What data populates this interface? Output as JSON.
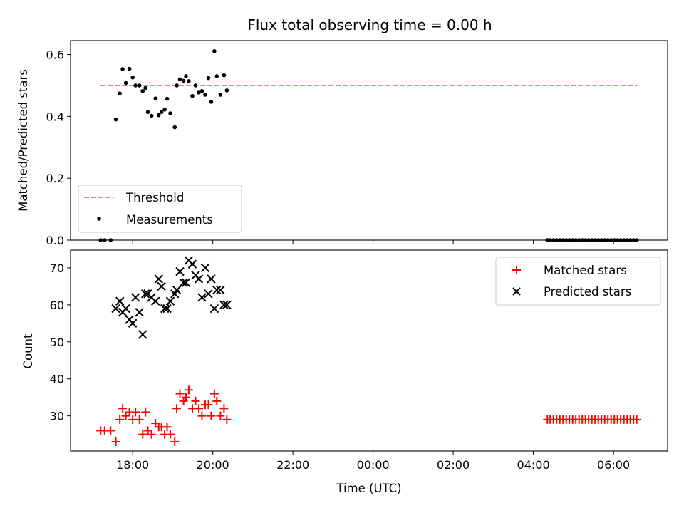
{
  "chart_data": {
    "title": "Flux total observing time = 0.00 h",
    "xlabel": "Time (UTC)",
    "x_ticks": [
      "18:00",
      "20:00",
      "22:00",
      "00:00",
      "02:00",
      "04:00",
      "06:00"
    ],
    "x_tick_hours": [
      18,
      20,
      22,
      24,
      26,
      28,
      30
    ],
    "xlim": [
      16.45,
      31.35
    ],
    "panels": [
      {
        "type": "scatter",
        "ylabel": "Matched/Predicted stars",
        "ylim": [
          0,
          0.645
        ],
        "y_ticks": [
          "0.0",
          "0.2",
          "0.4",
          "0.6"
        ],
        "y_tick_values": [
          0,
          0.2,
          0.4,
          0.6
        ],
        "legend": {
          "placement": "lower-left",
          "entries": [
            "Threshold",
            "Measurements"
          ]
        },
        "threshold": {
          "name": "Threshold",
          "y": 0.5,
          "x": [
            17.2,
            30.6
          ],
          "color": "#ff7f7f",
          "style": "dashed"
        },
        "series": [
          {
            "name": "Measurements",
            "marker": "dot",
            "color": "#000000",
            "points": [
              [
                17.2,
                0
              ],
              [
                17.3,
                0
              ],
              [
                17.45,
                0
              ],
              [
                17.58,
                0.39
              ],
              [
                17.68,
                0.474
              ],
              [
                17.75,
                0.553
              ],
              [
                17.83,
                0.508
              ],
              [
                17.92,
                0.554
              ],
              [
                18.0,
                0.526
              ],
              [
                18.07,
                0.5
              ],
              [
                18.17,
                0.5
              ],
              [
                18.25,
                0.482
              ],
              [
                18.32,
                0.492
              ],
              [
                18.38,
                0.414
              ],
              [
                18.47,
                0.402
              ],
              [
                18.57,
                0.458
              ],
              [
                18.65,
                0.404
              ],
              [
                18.72,
                0.414
              ],
              [
                18.8,
                0.422
              ],
              [
                18.86,
                0.457
              ],
              [
                18.94,
                0.41
              ],
              [
                19.05,
                0.365
              ],
              [
                19.1,
                0.5
              ],
              [
                19.18,
                0.52
              ],
              [
                19.27,
                0.515
              ],
              [
                19.33,
                0.53
              ],
              [
                19.4,
                0.514
              ],
              [
                19.49,
                0.466
              ],
              [
                19.57,
                0.5
              ],
              [
                19.65,
                0.477
              ],
              [
                19.73,
                0.482
              ],
              [
                19.81,
                0.47
              ],
              [
                19.89,
                0.524
              ],
              [
                19.96,
                0.447
              ],
              [
                20.04,
                0.611
              ],
              [
                20.1,
                0.53
              ],
              [
                20.19,
                0.47
              ],
              [
                20.28,
                0.533
              ],
              [
                20.35,
                0.484
              ],
              [
                28.35,
                0
              ],
              [
                28.42,
                0
              ],
              [
                28.5,
                0
              ],
              [
                28.58,
                0
              ],
              [
                28.66,
                0
              ],
              [
                28.74,
                0
              ],
              [
                28.82,
                0
              ],
              [
                28.9,
                0
              ],
              [
                28.98,
                0
              ],
              [
                29.06,
                0
              ],
              [
                29.14,
                0
              ],
              [
                29.22,
                0
              ],
              [
                29.3,
                0
              ],
              [
                29.38,
                0
              ],
              [
                29.46,
                0
              ],
              [
                29.54,
                0
              ],
              [
                29.62,
                0
              ],
              [
                29.7,
                0
              ],
              [
                29.78,
                0
              ],
              [
                29.86,
                0
              ],
              [
                29.94,
                0
              ],
              [
                30.02,
                0
              ],
              [
                30.1,
                0
              ],
              [
                30.18,
                0
              ],
              [
                30.26,
                0
              ],
              [
                30.34,
                0
              ],
              [
                30.42,
                0
              ],
              [
                30.5,
                0
              ],
              [
                30.58,
                0
              ]
            ]
          }
        ]
      },
      {
        "type": "scatter",
        "ylabel": "Count",
        "ylim": [
          20.5,
          74.8
        ],
        "y_ticks": [
          "30",
          "40",
          "50",
          "60",
          "70"
        ],
        "y_tick_values": [
          30,
          40,
          50,
          60,
          70
        ],
        "legend": {
          "placement": "upper-right",
          "entries": [
            "Matched stars",
            "Predicted stars"
          ]
        },
        "series": [
          {
            "name": "Matched stars",
            "marker": "plus",
            "color": "#ff0000",
            "points": [
              [
                17.2,
                26
              ],
              [
                17.3,
                26
              ],
              [
                17.45,
                26
              ],
              [
                17.58,
                23
              ],
              [
                17.68,
                29
              ],
              [
                17.75,
                32
              ],
              [
                17.83,
                30
              ],
              [
                17.92,
                31
              ],
              [
                18.0,
                29
              ],
              [
                18.07,
                31
              ],
              [
                18.17,
                29
              ],
              [
                18.25,
                25
              ],
              [
                18.32,
                31
              ],
              [
                18.38,
                26
              ],
              [
                18.47,
                25
              ],
              [
                18.57,
                28
              ],
              [
                18.65,
                27
              ],
              [
                18.72,
                27
              ],
              [
                18.8,
                25
              ],
              [
                18.86,
                27
              ],
              [
                18.94,
                25
              ],
              [
                19.05,
                23
              ],
              [
                19.1,
                32
              ],
              [
                19.18,
                36
              ],
              [
                19.27,
                34
              ],
              [
                19.33,
                35
              ],
              [
                19.4,
                37
              ],
              [
                19.49,
                32
              ],
              [
                19.57,
                34
              ],
              [
                19.65,
                32
              ],
              [
                19.73,
                30
              ],
              [
                19.81,
                33
              ],
              [
                19.89,
                33
              ],
              [
                19.96,
                30
              ],
              [
                20.04,
                36
              ],
              [
                20.1,
                34
              ],
              [
                20.19,
                30
              ],
              [
                20.28,
                32
              ],
              [
                20.35,
                29
              ],
              [
                28.35,
                29
              ],
              [
                28.42,
                29
              ],
              [
                28.5,
                29
              ],
              [
                28.58,
                29
              ],
              [
                28.66,
                29
              ],
              [
                28.74,
                29
              ],
              [
                28.82,
                29
              ],
              [
                28.9,
                29
              ],
              [
                28.98,
                29
              ],
              [
                29.06,
                29
              ],
              [
                29.14,
                29
              ],
              [
                29.22,
                29
              ],
              [
                29.3,
                29
              ],
              [
                29.38,
                29
              ],
              [
                29.46,
                29
              ],
              [
                29.54,
                29
              ],
              [
                29.62,
                29
              ],
              [
                29.7,
                29
              ],
              [
                29.78,
                29
              ],
              [
                29.86,
                29
              ],
              [
                29.94,
                29
              ],
              [
                30.02,
                29
              ],
              [
                30.1,
                29
              ],
              [
                30.18,
                29
              ],
              [
                30.26,
                29
              ],
              [
                30.34,
                29
              ],
              [
                30.42,
                29
              ],
              [
                30.5,
                29
              ],
              [
                30.58,
                29
              ]
            ]
          },
          {
            "name": "Predicted stars",
            "marker": "x",
            "color": "#000000",
            "points": [
              [
                17.58,
                59
              ],
              [
                17.68,
                61
              ],
              [
                17.75,
                58
              ],
              [
                17.83,
                59
              ],
              [
                17.92,
                56
              ],
              [
                18.0,
                55
              ],
              [
                18.07,
                62
              ],
              [
                18.17,
                58
              ],
              [
                18.25,
                52
              ],
              [
                18.32,
                63
              ],
              [
                18.38,
                63
              ],
              [
                18.47,
                62
              ],
              [
                18.57,
                61
              ],
              [
                18.65,
                67
              ],
              [
                18.72,
                65
              ],
              [
                18.8,
                59
              ],
              [
                18.86,
                59
              ],
              [
                18.94,
                61
              ],
              [
                19.05,
                63
              ],
              [
                19.1,
                64
              ],
              [
                19.18,
                69
              ],
              [
                19.27,
                66
              ],
              [
                19.33,
                66
              ],
              [
                19.4,
                72
              ],
              [
                19.49,
                71
              ],
              [
                19.57,
                68
              ],
              [
                19.65,
                67
              ],
              [
                19.73,
                62
              ],
              [
                19.81,
                70
              ],
              [
                19.89,
                63
              ],
              [
                19.96,
                67
              ],
              [
                20.04,
                59
              ],
              [
                20.1,
                64
              ],
              [
                20.19,
                64
              ],
              [
                20.28,
                60
              ],
              [
                20.35,
                60
              ]
            ]
          }
        ]
      }
    ]
  }
}
